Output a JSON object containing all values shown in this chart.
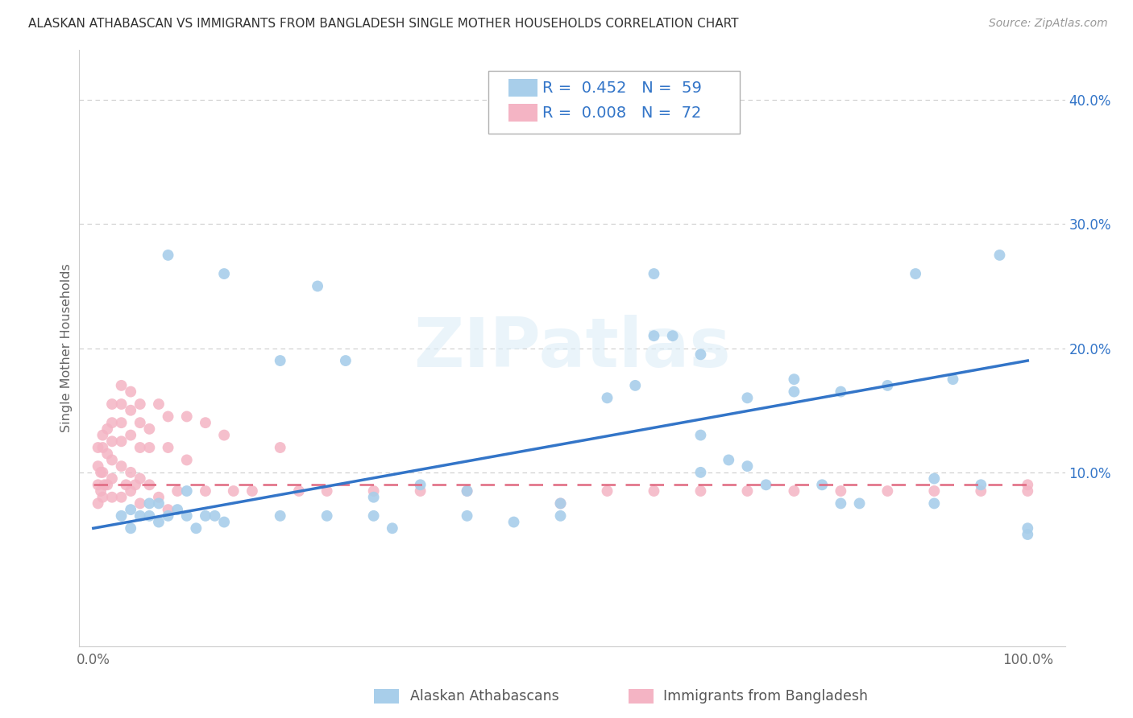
{
  "title": "ALASKAN ATHABASCAN VS IMMIGRANTS FROM BANGLADESH SINGLE MOTHER HOUSEHOLDS CORRELATION CHART",
  "source": "Source: ZipAtlas.com",
  "ylabel": "Single Mother Households",
  "legend_blue_R": "0.452",
  "legend_blue_N": "59",
  "legend_pink_R": "0.008",
  "legend_pink_N": "72",
  "legend_blue_label": "Alaskan Athabascans",
  "legend_pink_label": "Immigrants from Bangladesh",
  "blue_color": "#A8CEEА",
  "pink_color": "#F4AFBF",
  "blue_line_color": "#3A7BC8",
  "pink_line_color": "#E06080",
  "background_color": "#ffffff",
  "grid_color": "#cccccc",
  "watermark": "ZIPatlas",
  "blue_scatter_x": [
    0.08,
    0.14,
    0.04,
    0.05,
    0.06,
    0.07,
    0.09,
    0.1,
    0.12,
    0.13,
    0.2,
    0.24,
    0.27,
    0.3,
    0.35,
    0.4,
    0.45,
    0.5,
    0.55,
    0.58,
    0.6,
    0.62,
    0.65,
    0.65,
    0.68,
    0.7,
    0.72,
    0.75,
    0.78,
    0.8,
    0.82,
    0.85,
    0.88,
    0.9,
    0.92,
    0.95,
    0.97,
    1.0,
    0.03,
    0.04,
    0.06,
    0.07,
    0.08,
    0.1,
    0.11,
    0.14,
    0.2,
    0.25,
    0.3,
    0.32,
    0.4,
    0.5,
    0.6,
    0.65,
    0.7,
    0.75,
    0.8,
    0.9,
    1.0
  ],
  "blue_scatter_y": [
    0.275,
    0.26,
    0.07,
    0.065,
    0.075,
    0.075,
    0.07,
    0.065,
    0.065,
    0.065,
    0.19,
    0.25,
    0.19,
    0.08,
    0.09,
    0.085,
    0.06,
    0.075,
    0.16,
    0.17,
    0.21,
    0.21,
    0.1,
    0.13,
    0.11,
    0.16,
    0.09,
    0.175,
    0.09,
    0.165,
    0.075,
    0.17,
    0.26,
    0.075,
    0.175,
    0.09,
    0.275,
    0.05,
    0.065,
    0.055,
    0.065,
    0.06,
    0.065,
    0.085,
    0.055,
    0.06,
    0.065,
    0.065,
    0.065,
    0.055,
    0.065,
    0.065,
    0.26,
    0.195,
    0.105,
    0.165,
    0.075,
    0.095,
    0.055
  ],
  "pink_scatter_x": [
    0.005,
    0.005,
    0.005,
    0.005,
    0.008,
    0.008,
    0.01,
    0.01,
    0.01,
    0.01,
    0.012,
    0.015,
    0.015,
    0.015,
    0.02,
    0.02,
    0.02,
    0.02,
    0.02,
    0.02,
    0.03,
    0.03,
    0.03,
    0.03,
    0.03,
    0.03,
    0.035,
    0.04,
    0.04,
    0.04,
    0.04,
    0.04,
    0.045,
    0.05,
    0.05,
    0.05,
    0.05,
    0.05,
    0.06,
    0.06,
    0.06,
    0.07,
    0.07,
    0.08,
    0.08,
    0.08,
    0.09,
    0.1,
    0.1,
    0.12,
    0.12,
    0.14,
    0.15,
    0.17,
    0.2,
    0.22,
    0.25,
    0.3,
    0.35,
    0.4,
    0.5,
    0.55,
    0.6,
    0.65,
    0.7,
    0.75,
    0.8,
    0.85,
    0.9,
    0.95,
    1.0,
    1.0
  ],
  "pink_scatter_y": [
    0.12,
    0.105,
    0.09,
    0.075,
    0.1,
    0.085,
    0.13,
    0.12,
    0.1,
    0.08,
    0.09,
    0.135,
    0.115,
    0.09,
    0.155,
    0.14,
    0.125,
    0.11,
    0.095,
    0.08,
    0.17,
    0.155,
    0.14,
    0.125,
    0.105,
    0.08,
    0.09,
    0.165,
    0.15,
    0.13,
    0.1,
    0.085,
    0.09,
    0.155,
    0.14,
    0.12,
    0.095,
    0.075,
    0.135,
    0.12,
    0.09,
    0.155,
    0.08,
    0.145,
    0.12,
    0.07,
    0.085,
    0.145,
    0.11,
    0.14,
    0.085,
    0.13,
    0.085,
    0.085,
    0.12,
    0.085,
    0.085,
    0.085,
    0.085,
    0.085,
    0.075,
    0.085,
    0.085,
    0.085,
    0.085,
    0.085,
    0.085,
    0.085,
    0.085,
    0.085,
    0.09,
    0.085
  ]
}
